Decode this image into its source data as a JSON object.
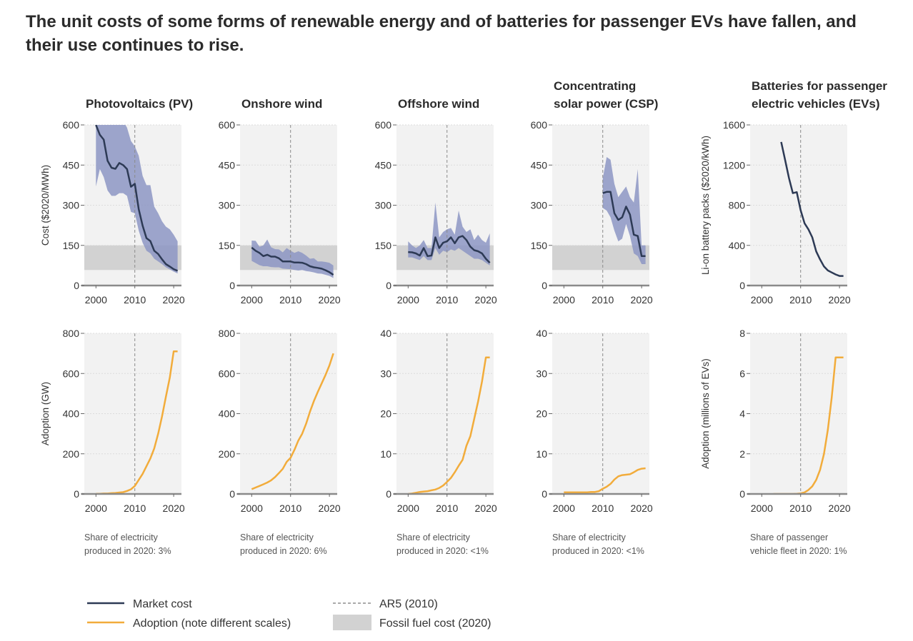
{
  "title": "The unit costs of some forms of renewable energy and of batteries for passenger EVs have fallen, and their use continues to rise.",
  "colors": {
    "market_cost": "#2d3a55",
    "cost_range": "#8d97c4",
    "adoption": "#f2ac3b",
    "fossil_band": "#d2d2d2",
    "panel_bg": "#f2f2f2",
    "ar5_line": "#8a8a8a"
  },
  "legend": {
    "market_cost": "Market cost",
    "adoption": "Adoption (note different scales)",
    "ar5": "AR5 (2010)",
    "fossil": "Fossil fuel cost (2020)"
  },
  "chart_data": [
    {
      "type": "line",
      "panel": "Photovoltaics (PV)",
      "title_lines": [
        "Photovoltaics (PV)"
      ],
      "note_lines": [
        "Share of electricity",
        "produced in 2020: 3%"
      ],
      "xlim": [
        1997,
        2022
      ],
      "xticks": [
        2000,
        2010,
        2020
      ],
      "ar5_year": 2010,
      "cost": {
        "ylabel": "Cost ($2020/MWh)",
        "ylim": [
          0,
          600
        ],
        "yticks": [
          0,
          150,
          300,
          450,
          600
        ],
        "fossil_range": [
          58,
          150
        ],
        "x": [
          2000,
          2001,
          2002,
          2003,
          2004,
          2005,
          2006,
          2007,
          2008,
          2009,
          2010,
          2011,
          2012,
          2013,
          2014,
          2015,
          2016,
          2017,
          2018,
          2019,
          2020,
          2021
        ],
        "y": [
          600,
          563,
          545,
          466,
          440,
          436,
          458,
          450,
          435,
          369,
          380,
          285,
          224,
          177,
          166,
          130,
          118,
          98,
          80,
          71,
          61,
          55
        ],
        "upper": [
          620,
          620,
          620,
          620,
          620,
          620,
          620,
          615,
          590,
          540,
          520,
          485,
          410,
          375,
          375,
          295,
          270,
          240,
          220,
          210,
          190,
          165
        ],
        "lower": [
          370,
          435,
          405,
          355,
          335,
          335,
          345,
          345,
          335,
          275,
          270,
          205,
          160,
          130,
          120,
          100,
          90,
          80,
          68,
          60,
          52,
          45
        ]
      },
      "adoption": {
        "ylabel": "Adoption (GW)",
        "ylim": [
          0,
          800
        ],
        "yticks": [
          0,
          200,
          400,
          600,
          800
        ],
        "x": [
          2000,
          2001,
          2002,
          2003,
          2004,
          2005,
          2006,
          2007,
          2008,
          2009,
          2010,
          2011,
          2012,
          2013,
          2014,
          2015,
          2016,
          2017,
          2018,
          2019,
          2020,
          2021
        ],
        "y": [
          1,
          1,
          2,
          2,
          4,
          5,
          7,
          9,
          15,
          23,
          40,
          70,
          100,
          138,
          177,
          227,
          300,
          386,
          484,
          580,
          710,
          710
        ]
      }
    },
    {
      "type": "line",
      "panel": "Onshore wind",
      "title_lines": [
        "Onshore wind"
      ],
      "note_lines": [
        "Share of electricity",
        "produced in 2020: 6%"
      ],
      "xlim": [
        1997,
        2022
      ],
      "xticks": [
        2000,
        2010,
        2020
      ],
      "ar5_year": 2010,
      "cost": {
        "ylabel": "",
        "ylim": [
          0,
          600
        ],
        "yticks": [
          0,
          150,
          300,
          450,
          600
        ],
        "fossil_range": [
          58,
          150
        ],
        "x": [
          2000,
          2001,
          2002,
          2003,
          2004,
          2005,
          2006,
          2007,
          2008,
          2009,
          2010,
          2011,
          2012,
          2013,
          2014,
          2015,
          2016,
          2017,
          2018,
          2019,
          2020,
          2021
        ],
        "y": [
          142,
          130,
          122,
          110,
          115,
          108,
          108,
          102,
          90,
          90,
          90,
          86,
          86,
          85,
          80,
          72,
          68,
          66,
          63,
          57,
          50,
          40
        ],
        "upper": [
          168,
          167,
          145,
          150,
          172,
          143,
          136,
          135,
          124,
          140,
          130,
          122,
          128,
          122,
          112,
          100,
          102,
          90,
          90,
          88,
          85,
          75
        ],
        "lower": [
          92,
          84,
          76,
          72,
          72,
          69,
          68,
          68,
          63,
          62,
          61,
          58,
          56,
          58,
          54,
          52,
          49,
          45,
          44,
          40,
          36,
          28
        ]
      },
      "adoption": {
        "ylabel": "",
        "ylim": [
          0,
          800
        ],
        "yticks": [
          0,
          200,
          400,
          600,
          800
        ],
        "x": [
          2000,
          2001,
          2002,
          2003,
          2004,
          2005,
          2006,
          2007,
          2008,
          2009,
          2010,
          2011,
          2012,
          2013,
          2014,
          2015,
          2016,
          2017,
          2018,
          2019,
          2020,
          2021
        ],
        "y": [
          24,
          32,
          40,
          48,
          57,
          68,
          84,
          104,
          125,
          160,
          180,
          220,
          266,
          300,
          350,
          410,
          463,
          508,
          550,
          593,
          640,
          700
        ]
      }
    },
    {
      "type": "line",
      "panel": "Offshore wind",
      "title_lines": [
        "Offshore wind"
      ],
      "note_lines": [
        "Share of electricity",
        "produced in 2020: <1%"
      ],
      "xlim": [
        1997,
        2022
      ],
      "xticks": [
        2000,
        2010,
        2020
      ],
      "ar5_year": 2010,
      "cost": {
        "ylabel": "",
        "ylim": [
          0,
          600
        ],
        "yticks": [
          0,
          150,
          300,
          450,
          600
        ],
        "fossil_range": [
          58,
          150
        ],
        "x": [
          2000,
          2001,
          2002,
          2003,
          2004,
          2005,
          2006,
          2007,
          2008,
          2009,
          2010,
          2011,
          2012,
          2013,
          2014,
          2015,
          2016,
          2017,
          2018,
          2019,
          2020,
          2021
        ],
        "y": [
          125,
          124,
          120,
          112,
          140,
          110,
          112,
          180,
          140,
          160,
          165,
          180,
          158,
          180,
          185,
          170,
          145,
          132,
          128,
          120,
          100,
          85
        ],
        "upper": [
          165,
          150,
          140,
          150,
          170,
          140,
          140,
          310,
          180,
          200,
          210,
          215,
          190,
          280,
          220,
          200,
          210,
          170,
          190,
          170,
          160,
          195
        ],
        "lower": [
          105,
          105,
          100,
          95,
          110,
          95,
          95,
          140,
          115,
          130,
          125,
          135,
          130,
          140,
          130,
          120,
          110,
          100,
          100,
          95,
          85,
          75
        ]
      },
      "adoption": {
        "ylabel": "",
        "ylim": [
          0,
          40
        ],
        "yticks": [
          0,
          10,
          20,
          30,
          40
        ],
        "x": [
          2000,
          2001,
          2002,
          2003,
          2004,
          2005,
          2006,
          2007,
          2008,
          2009,
          2010,
          2011,
          2012,
          2013,
          2014,
          2015,
          2016,
          2017,
          2018,
          2019,
          2020,
          2021
        ],
        "y": [
          0,
          0.1,
          0.3,
          0.5,
          0.6,
          0.7,
          0.9,
          1.1,
          1.5,
          2.1,
          3,
          4,
          5.4,
          7,
          8.5,
          12,
          14.4,
          18.7,
          23,
          28,
          34,
          34
        ]
      }
    },
    {
      "type": "line",
      "panel": "Concentrating solar power (CSP)",
      "title_lines": [
        "Concentrating",
        "solar power (CSP)"
      ],
      "note_lines": [
        "Share of electricity",
        "produced in 2020: <1%"
      ],
      "xlim": [
        1997,
        2022
      ],
      "xticks": [
        2000,
        2010,
        2020
      ],
      "ar5_year": 2010,
      "cost": {
        "ylabel": "",
        "ylim": [
          0,
          600
        ],
        "yticks": [
          0,
          150,
          300,
          450,
          600
        ],
        "fossil_range": [
          58,
          150
        ],
        "x": [
          2010,
          2011,
          2012,
          2013,
          2014,
          2015,
          2016,
          2017,
          2018,
          2019,
          2020,
          2021
        ],
        "y": [
          345,
          350,
          350,
          270,
          245,
          255,
          295,
          265,
          190,
          185,
          110,
          110
        ],
        "upper": [
          400,
          480,
          470,
          380,
          330,
          350,
          370,
          330,
          310,
          435,
          150,
          150
        ],
        "lower": [
          290,
          280,
          255,
          205,
          165,
          175,
          230,
          185,
          120,
          110,
          80,
          80
        ]
      },
      "adoption": {
        "ylabel": "",
        "ylim": [
          0,
          40
        ],
        "yticks": [
          0,
          10,
          20,
          30,
          40
        ],
        "x": [
          2000,
          2001,
          2002,
          2003,
          2004,
          2005,
          2006,
          2007,
          2008,
          2009,
          2010,
          2011,
          2012,
          2013,
          2014,
          2015,
          2016,
          2017,
          2018,
          2019,
          2020,
          2021
        ],
        "y": [
          0.4,
          0.4,
          0.4,
          0.4,
          0.4,
          0.4,
          0.4,
          0.5,
          0.5,
          0.7,
          1.3,
          1.8,
          2.5,
          3.6,
          4.4,
          4.7,
          4.8,
          4.9,
          5.4,
          6.0,
          6.3,
          6.4
        ]
      }
    },
    {
      "type": "line",
      "panel": "Batteries for passenger electric vehicles (EVs)",
      "title_lines": [
        "Batteries for passenger",
        "electric vehicles (EVs)"
      ],
      "note_lines": [
        "Share of passenger",
        "vehicle fleet in 2020: 1%"
      ],
      "xlim": [
        1997,
        2022
      ],
      "xticks": [
        2000,
        2010,
        2020
      ],
      "ar5_year": 2010,
      "cost": {
        "ylabel": "Li-on battery packs ($2020/kWh)",
        "ylim": [
          0,
          1600
        ],
        "yticks": [
          0,
          400,
          800,
          1200,
          1600
        ],
        "fossil_range": null,
        "x": [
          2005,
          2006,
          2007,
          2008,
          2009,
          2010,
          2011,
          2012,
          2013,
          2014,
          2015,
          2016,
          2017,
          2018,
          2019,
          2020,
          2021
        ],
        "y": [
          1430,
          1250,
          1070,
          920,
          930,
          750,
          620,
          560,
          480,
          340,
          260,
          190,
          150,
          130,
          110,
          95,
          95
        ]
      },
      "adoption": {
        "ylabel": "Adoption (millions of EVs)",
        "ylim": [
          0,
          8
        ],
        "yticks": [
          0,
          2,
          4,
          6,
          8
        ],
        "x": [
          2003,
          2004,
          2005,
          2006,
          2007,
          2008,
          2009,
          2010,
          2011,
          2012,
          2013,
          2014,
          2015,
          2016,
          2017,
          2018,
          2019,
          2020,
          2021
        ],
        "y": [
          0,
          0,
          0,
          0,
          0,
          0,
          0.01,
          0.03,
          0.08,
          0.2,
          0.38,
          0.7,
          1.2,
          2.0,
          3.2,
          4.8,
          6.8,
          6.8,
          6.8
        ]
      }
    }
  ]
}
